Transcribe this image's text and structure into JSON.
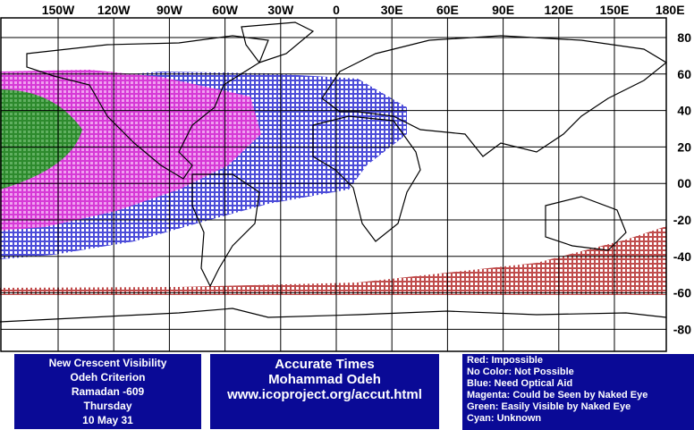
{
  "map": {
    "longitude_labels": [
      "150W",
      "120W",
      "90W",
      "60W",
      "30W",
      "0",
      "30E",
      "60E",
      "90E",
      "120E",
      "150E",
      "180E"
    ],
    "latitude_labels": [
      "80",
      "60",
      "40",
      "20",
      "00",
      "-20",
      "-40",
      "-60",
      "-80"
    ]
  },
  "info_box": {
    "lines": [
      "New Crescent Visibility",
      "Odeh Criterion",
      "Ramadan -609",
      "Thursday",
      "10 May 31"
    ]
  },
  "credit_box": {
    "lines": [
      "Accurate Times",
      "Mohammad Odeh",
      "www.icoproject.org/accut.html"
    ]
  },
  "legend": {
    "lines": [
      "Red: Impossible",
      "No Color: Not Possible",
      "Blue: Need Optical Aid",
      "Magenta: Could be Seen by Naked Eye",
      "Green: Easily Visible by Naked Eye",
      "Cyan: Unknown"
    ]
  }
}
